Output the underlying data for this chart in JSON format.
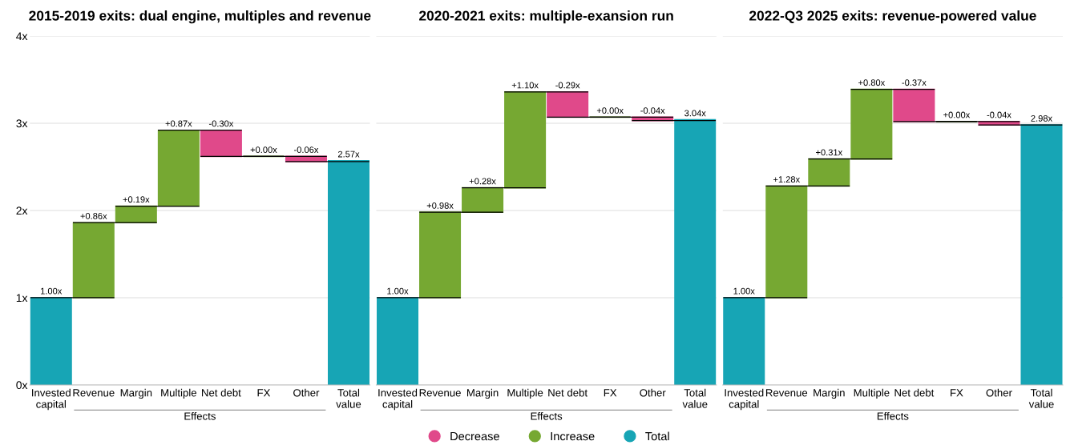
{
  "chart_data": [
    {
      "type": "bar",
      "title": "2015-2019 exits: dual engine, multiples and revenue",
      "categories": [
        "Invested\ncapital",
        "Revenue",
        "Margin",
        "Multiple",
        "Net debt",
        "FX",
        "Other",
        "Total\nvalue"
      ],
      "series": [
        {
          "color": "#e0498a",
          "values": [
            null,
            null,
            null,
            null,
            -0.3,
            null,
            -0.06,
            null
          ],
          "base": [
            null,
            null,
            null,
            null,
            2.92,
            null,
            2.62,
            null
          ],
          "value_labels": [
            null,
            null,
            null,
            null,
            "-0.30x",
            null,
            "-0.06x",
            null
          ]
        },
        {
          "color": "#76a832",
          "values": [
            null,
            0.86,
            0.19,
            0.87,
            null,
            0.0,
            null,
            null
          ],
          "base": [
            null,
            1.0,
            1.86,
            2.05,
            null,
            2.62,
            null,
            null
          ],
          "value_labels": [
            null,
            "+0.86x",
            "+0.19x",
            "+0.87x",
            null,
            "+0.00x",
            null,
            null
          ]
        },
        {
          "color": "#17a5b5",
          "values": [
            1.0,
            null,
            null,
            null,
            null,
            null,
            null,
            2.57
          ],
          "base": [
            0,
            null,
            null,
            null,
            null,
            null,
            null,
            0
          ],
          "value_labels": [
            "1.00x",
            null,
            null,
            null,
            null,
            null,
            null,
            "2.57x"
          ]
        }
      ],
      "ylim": [
        0,
        4
      ],
      "yticks": [
        {
          "value": 0,
          "label": "0x"
        },
        {
          "value": 1,
          "label": "1x"
        },
        {
          "value": 2,
          "label": "2x"
        },
        {
          "value": 3,
          "label": "3x"
        },
        {
          "value": 4,
          "label": "4x"
        }
      ],
      "grid": "y",
      "annotations": [
        "Effects"
      ]
    },
    {
      "type": "bar",
      "title": "2020-2021 exits: multiple-exansion run",
      "categories": [
        "Invested\ncapital",
        "Revenue",
        "Margin",
        "Multiple",
        "Net debt",
        "FX",
        "Other",
        "Total\nvalue"
      ],
      "series": [
        {
          "name": "Decrease",
          "color": "#e0498a",
          "values": [
            null,
            null,
            null,
            null,
            -0.29,
            null,
            -0.04,
            null
          ],
          "base": [
            null,
            null,
            null,
            null,
            3.36,
            null,
            3.07,
            null
          ],
          "value_labels": [
            null,
            null,
            null,
            null,
            "-0.29x",
            null,
            "-0.04x",
            null
          ]
        },
        {
          "name": "Increase",
          "color": "#76a832",
          "values": [
            null,
            0.98,
            0.28,
            1.1,
            null,
            0.0,
            null,
            null
          ],
          "base": [
            null,
            1.0,
            1.98,
            2.26,
            null,
            3.07,
            null,
            null
          ],
          "value_labels": [
            null,
            "+0.98x",
            "+0.28x",
            "+1.10x",
            null,
            "+0.00x",
            null,
            null
          ]
        },
        {
          "name": "Total",
          "color": "#17a5b5",
          "values": [
            1.0,
            null,
            null,
            null,
            null,
            null,
            null,
            3.04
          ],
          "base": [
            0,
            null,
            null,
            null,
            null,
            null,
            null,
            0
          ],
          "value_labels": [
            "1.00x",
            null,
            null,
            null,
            null,
            null,
            null,
            "3.04x"
          ]
        }
      ],
      "ylim": [
        0,
        4
      ],
      "tick_labels": "x",
      "grid": "y",
      "legend": "bottom",
      "annotations": [
        "Effects"
      ]
    },
    {
      "type": "bar",
      "title": "2022-Q3 2025 exits: revenue-powered value",
      "categories": [
        "Invested\ncapital",
        "Revenue",
        "Margin",
        "Multiple",
        "Net debt",
        "FX",
        "Other",
        "Total\nvalue"
      ],
      "series": [
        {
          "color": "#e0498a",
          "values": [
            null,
            null,
            null,
            null,
            -0.37,
            null,
            -0.04,
            null
          ],
          "base": [
            null,
            null,
            null,
            null,
            3.39,
            null,
            3.02,
            null
          ],
          "value_labels": [
            null,
            null,
            null,
            null,
            "-0.37x",
            null,
            "-0.04x",
            null
          ]
        },
        {
          "color": "#76a832",
          "values": [
            null,
            1.28,
            0.31,
            0.8,
            null,
            0.0,
            null,
            null
          ],
          "base": [
            null,
            1.0,
            2.28,
            2.59,
            null,
            3.02,
            null,
            null
          ],
          "value_labels": [
            null,
            "+1.28x",
            "+0.31x",
            "+0.80x",
            null,
            "+0.00x",
            null,
            null
          ]
        },
        {
          "color": "#17a5b5",
          "values": [
            1.0,
            null,
            null,
            null,
            null,
            null,
            null,
            2.98
          ],
          "base": [
            0,
            null,
            null,
            null,
            null,
            null,
            null,
            0
          ],
          "value_labels": [
            "1.00x",
            null,
            null,
            null,
            null,
            null,
            null,
            "2.98x"
          ]
        }
      ],
      "ylim": [
        0,
        4
      ],
      "tick_labels": "x",
      "grid": "y",
      "annotations": [
        "Effects"
      ]
    }
  ]
}
